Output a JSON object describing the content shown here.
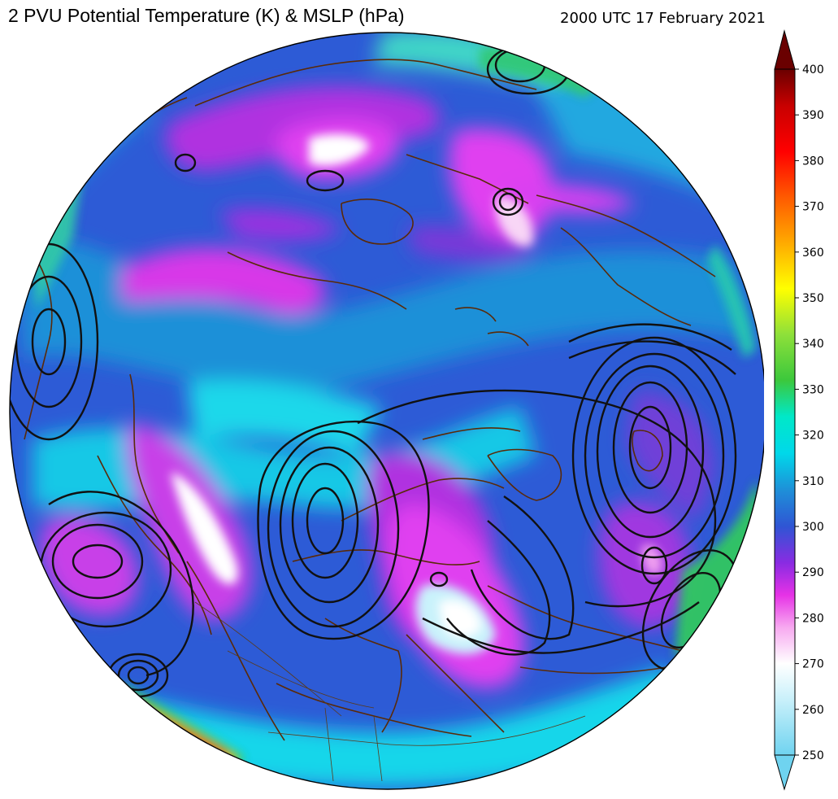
{
  "header": {
    "title": "2 PVU Potential Temperature (K) & MSLP (hPa)",
    "datetime": "2000 UTC 17 February 2021"
  },
  "colorbar": {
    "ticks": [
      "400",
      "390",
      "380",
      "370",
      "360",
      "350",
      "340",
      "330",
      "320",
      "310",
      "300",
      "290",
      "280",
      "270",
      "260",
      "250"
    ],
    "min": 250,
    "max": 400,
    "stops": [
      {
        "value": 250,
        "color": "#6fd3f0"
      },
      {
        "value": 262,
        "color": "#c8f0fa"
      },
      {
        "value": 270,
        "color": "#ffffff"
      },
      {
        "value": 278,
        "color": "#f7a8f0"
      },
      {
        "value": 285,
        "color": "#e632e6"
      },
      {
        "value": 292,
        "color": "#8a2be2"
      },
      {
        "value": 300,
        "color": "#2f55d4"
      },
      {
        "value": 308,
        "color": "#1e90d8"
      },
      {
        "value": 316,
        "color": "#00d8ea"
      },
      {
        "value": 324,
        "color": "#00e8c8"
      },
      {
        "value": 332,
        "color": "#3cc83c"
      },
      {
        "value": 342,
        "color": "#8ee03a"
      },
      {
        "value": 352,
        "color": "#ffff00"
      },
      {
        "value": 362,
        "color": "#ffaa00"
      },
      {
        "value": 372,
        "color": "#ff5a00"
      },
      {
        "value": 382,
        "color": "#ff0000"
      },
      {
        "value": 392,
        "color": "#c80000"
      },
      {
        "value": 400,
        "color": "#6a0000"
      }
    ]
  },
  "map": {
    "projection": "orthographic",
    "colors": {
      "coastline": "#5a2a08",
      "isobar": "#111111",
      "outline": "#000000"
    }
  }
}
